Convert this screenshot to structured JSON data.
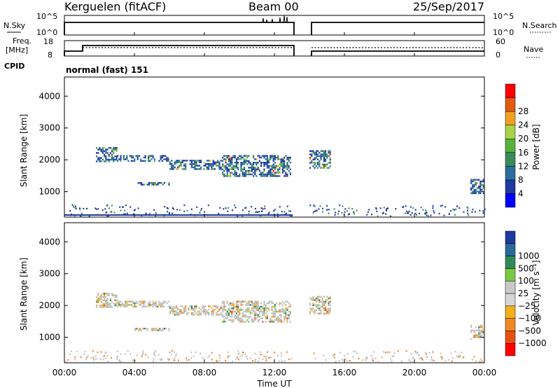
{
  "header": {
    "station": "Kerguelen (fitACF)",
    "beam": "Beam 00",
    "date": "25/Sep/2017"
  },
  "strip_nsky": {
    "left_label": "N.Sky",
    "left_ticks": [
      "10^5",
      "10^0"
    ],
    "right_ticks": [
      "10^5",
      "10^0"
    ],
    "right_label": "N.Search"
  },
  "strip_freq": {
    "left_label_1": "Freq.",
    "left_label_2": "[MHz]",
    "left_ticks": [
      "18",
      "8"
    ],
    "right_ticks": [
      "60",
      "0"
    ],
    "right_label": "Nave",
    "cpid_label": "CPID",
    "cpid_value": "normal (fast) 151"
  },
  "x_axis": {
    "label": "Time UT",
    "ticks": [
      "00:00",
      "04:00",
      "08:00",
      "12:00",
      "16:00",
      "20:00",
      "00:00"
    ]
  },
  "colors": {
    "power_scale": [
      "#0000ff",
      "#1f3aa0",
      "#2a6e9c",
      "#3b8a5c",
      "#55b33a",
      "#a8d24a",
      "#f0a020",
      "#e05a10",
      "#ff0000"
    ],
    "velocity_scale": [
      "#ff0000",
      "#e85010",
      "#f08a20",
      "#f3b01c",
      "#d6d6d6",
      "#c8c8c8",
      "#7bc843",
      "#2e8b57",
      "#2a6a9a",
      "#1f3aa0"
    ],
    "scatter_gray": "#c0c0c0"
  },
  "chart_data": [
    {
      "type": "heatmap",
      "name_role": "power-panel",
      "ylabel": "Slant Range [km]",
      "yticks": [
        "1000",
        "2000",
        "3000",
        "4000"
      ],
      "ylim": [
        200,
        4600
      ],
      "xlim": [
        0,
        24
      ],
      "colorbar_label": "Power [dB]",
      "colorbar_ticks": [
        "4",
        "8",
        "12",
        "16",
        "20",
        "24",
        "28"
      ],
      "echo_bands": [
        {
          "t0": 1.8,
          "t1": 3.0,
          "r0": 1950,
          "r1": 2400
        },
        {
          "t0": 3.0,
          "t1": 6.0,
          "r0": 1950,
          "r1": 2150
        },
        {
          "t0": 6.0,
          "t1": 9.0,
          "r0": 1700,
          "r1": 2000
        },
        {
          "t0": 9.0,
          "t1": 13.0,
          "r0": 1450,
          "r1": 2150
        },
        {
          "t0": 4.0,
          "t1": 6.0,
          "r0": 1200,
          "r1": 1300
        },
        {
          "t0": 14.0,
          "t1": 15.2,
          "r0": 1700,
          "r1": 2300
        },
        {
          "t0": 23.2,
          "t1": 24.0,
          "r0": 900,
          "r1": 1400
        }
      ]
    },
    {
      "type": "heatmap",
      "name_role": "velocity-panel",
      "ylabel": "Slant Range [km]",
      "yticks": [
        "1000",
        "2000",
        "3000",
        "4000"
      ],
      "ylim": [
        200,
        4600
      ],
      "xlim": [
        0,
        24
      ],
      "colorbar_label": "Velocity [m s⁻¹]",
      "colorbar_ticks": [
        "1000",
        "500",
        "100",
        "25",
        "−25",
        "−100",
        "−500",
        "−1000"
      ],
      "echo_bands": [
        {
          "t0": 1.8,
          "t1": 3.0,
          "r0": 1950,
          "r1": 2400
        },
        {
          "t0": 3.0,
          "t1": 6.0,
          "r0": 1950,
          "r1": 2150
        },
        {
          "t0": 6.0,
          "t1": 9.0,
          "r0": 1700,
          "r1": 2000
        },
        {
          "t0": 9.0,
          "t1": 13.0,
          "r0": 1450,
          "r1": 2150
        },
        {
          "t0": 4.0,
          "t1": 6.0,
          "r0": 1200,
          "r1": 1300
        },
        {
          "t0": 14.0,
          "t1": 15.2,
          "r0": 1700,
          "r1": 2300
        },
        {
          "t0": 23.2,
          "t1": 24.0,
          "r0": 900,
          "r1": 1400
        }
      ]
    }
  ]
}
